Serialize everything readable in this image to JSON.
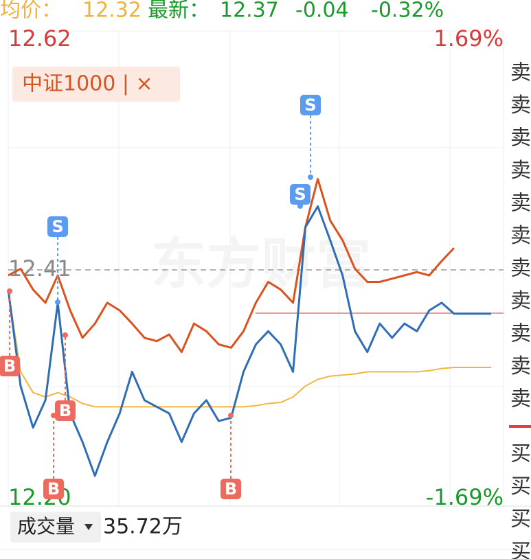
{
  "header": {
    "avg_label": "均价：",
    "avg": "12.32",
    "last_label": "最新：",
    "last": "12.37",
    "change": "-0.04",
    "change_pct": "-0.32%"
  },
  "chart_data": {
    "type": "line",
    "x": [
      0,
      6,
      12,
      18,
      24,
      30,
      36,
      42,
      48,
      54,
      60,
      66,
      72,
      78,
      84,
      90,
      96,
      102,
      108,
      114,
      120,
      126,
      132,
      138,
      144,
      150,
      156,
      162,
      168,
      174,
      180,
      186,
      192,
      198,
      204,
      210,
      216,
      222,
      228,
      234
    ],
    "xlim": [
      0,
      240
    ],
    "ylim": [
      12.2,
      12.62
    ],
    "yticks": [
      {
        "value": 12.62,
        "label": "12.62"
      },
      12.41,
      {
        "value": 12.2,
        "label": "12.20"
      }
    ],
    "y2lim": [
      -1.69,
      1.69
    ],
    "y2ticks": [
      {
        "value": 1.69,
        "label": "1.69%"
      },
      {
        "value": -1.69,
        "label": "-1.69%"
      }
    ],
    "series": [
      {
        "name": "中证1000",
        "color": "#d9531e",
        "values": [
          12.405,
          12.411,
          12.392,
          12.38,
          12.405,
          12.373,
          12.348,
          12.361,
          12.38,
          12.373,
          12.361,
          12.348,
          12.345,
          12.351,
          12.335,
          12.361,
          12.354,
          12.342,
          12.339,
          12.354,
          12.38,
          12.399,
          12.392,
          12.38,
          12.449,
          12.493,
          12.455,
          12.437,
          12.411,
          12.399,
          12.399,
          12.402,
          12.405,
          12.408,
          12.405,
          12.418,
          12.43,
          null,
          null,
          null
        ]
      },
      {
        "color": "#2f6db5",
        "values": [
          12.392,
          12.304,
          12.266,
          12.291,
          12.38,
          12.279,
          12.253,
          12.222,
          12.253,
          12.279,
          12.317,
          12.291,
          12.285,
          12.279,
          12.253,
          12.279,
          12.291,
          12.272,
          12.275,
          12.317,
          12.342,
          12.354,
          12.342,
          12.317,
          12.449,
          12.468,
          12.437,
          12.405,
          12.354,
          12.335,
          12.361,
          12.348,
          12.361,
          12.354,
          12.373,
          12.38,
          12.37,
          12.37,
          12.37,
          12.37
        ]
      },
      {
        "color": "#f2b640",
        "values": [
          12.392,
          12.317,
          12.298,
          12.294,
          12.298,
          12.294,
          12.288,
          12.285,
          12.285,
          12.285,
          12.285,
          12.285,
          12.285,
          12.285,
          12.285,
          12.285,
          12.285,
          12.285,
          12.285,
          12.285,
          12.286,
          12.288,
          12.289,
          12.294,
          12.304,
          12.31,
          12.313,
          12.314,
          12.315,
          12.317,
          12.317,
          12.317,
          12.317,
          12.317,
          12.318,
          12.32,
          12.321,
          12.321,
          12.321,
          12.321
        ]
      }
    ]
  },
  "index_tag": "中证1000 | ×",
  "watermark": "东方财富",
  "markers": [
    "S",
    "S",
    "S",
    "B",
    "B",
    "B",
    "B"
  ],
  "order_book": {
    "sell": [
      "卖",
      "卖",
      "卖",
      "卖",
      "卖",
      "卖",
      "卖",
      "卖",
      "卖",
      "卖",
      "卖"
    ],
    "buy": [
      "买",
      "买",
      "买",
      "买"
    ]
  },
  "volume": {
    "label": "成交量",
    "value": "35.72万"
  }
}
